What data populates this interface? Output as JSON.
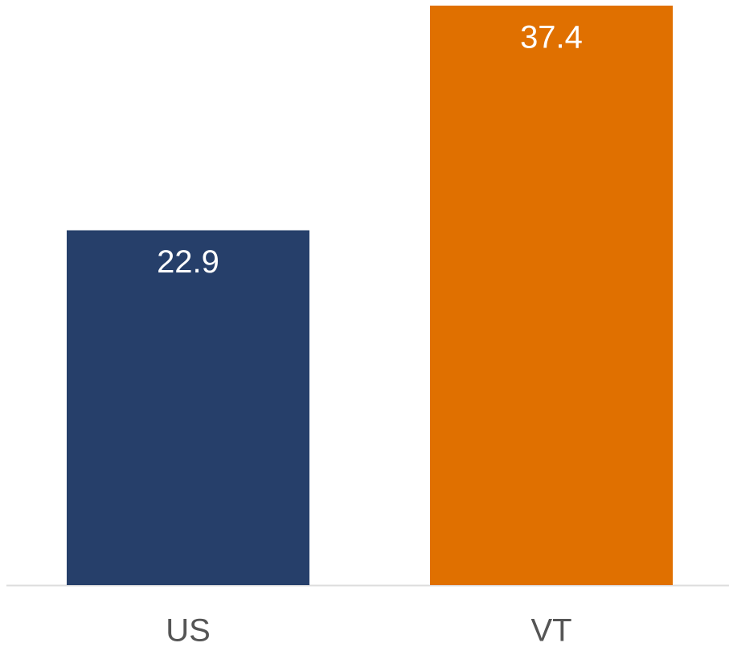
{
  "chart_data": {
    "type": "bar",
    "categories": [
      "US",
      "VT"
    ],
    "values": [
      22.9,
      37.4
    ],
    "colors": [
      "#263f6a",
      "#e07000"
    ],
    "grid": false
  }
}
